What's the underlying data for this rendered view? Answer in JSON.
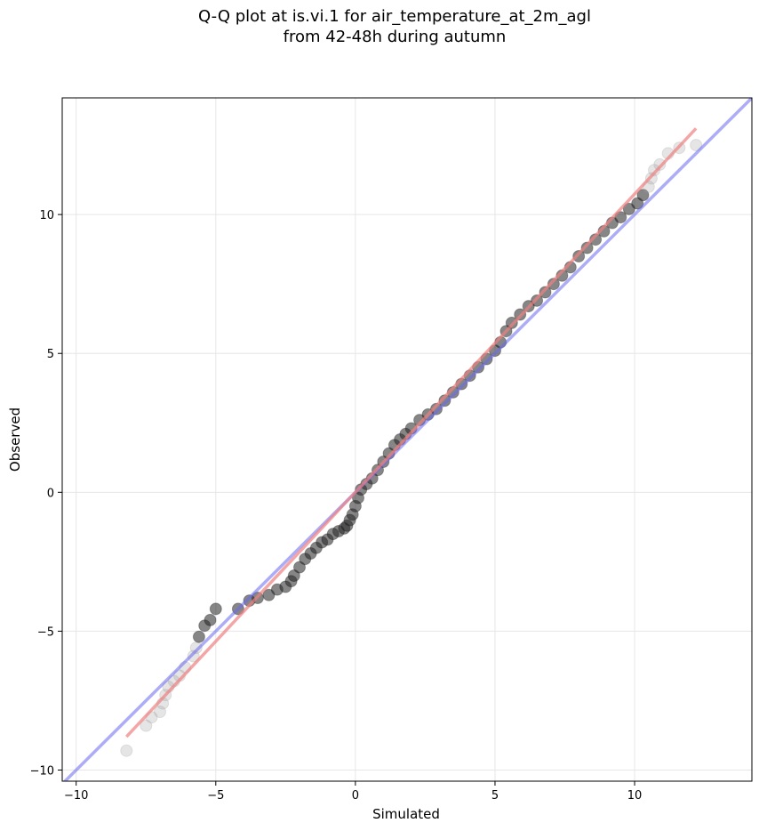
{
  "chart_data": {
    "type": "scatter",
    "title_line1": "Q-Q plot at is.vi.1 for air_temperature_at_2m_agl",
    "title_line2": "from 42-48h during autumn",
    "xlabel": "Simulated",
    "ylabel": "Observed",
    "xlim": [
      -10.5,
      14.2
    ],
    "ylim": [
      -10.4,
      14.2
    ],
    "grid": true,
    "xticks": [
      -10,
      -5,
      0,
      5,
      10
    ],
    "yticks": [
      -10,
      -5,
      0,
      5,
      10
    ],
    "xtick_labels": [
      "−10",
      "−5",
      "0",
      "5",
      "10"
    ],
    "ytick_labels": [
      "−10",
      "−5",
      "0",
      "5",
      "10"
    ],
    "reference_line": {
      "color": "#6a6af0",
      "points": [
        [
          -10.5,
          -10.5
        ],
        [
          14.2,
          14.2
        ]
      ]
    },
    "fit_line": {
      "color": "#f08080",
      "points": [
        [
          -8.2,
          -8.8
        ],
        [
          12.2,
          13.1
        ]
      ]
    },
    "quantiles": [
      [
        -8.2,
        -9.3
      ],
      [
        -7.5,
        -8.4
      ],
      [
        -7.3,
        -8.1
      ],
      [
        -7.0,
        -7.9
      ],
      [
        -6.9,
        -7.6
      ],
      [
        -6.8,
        -7.3
      ],
      [
        -6.7,
        -7.0
      ],
      [
        -6.5,
        -6.8
      ],
      [
        -6.3,
        -6.6
      ],
      [
        -6.1,
        -6.3
      ],
      [
        -5.8,
        -5.9
      ],
      [
        -5.7,
        -5.6
      ],
      [
        -5.6,
        -5.2
      ],
      [
        -5.4,
        -4.8
      ],
      [
        -5.2,
        -4.6
      ],
      [
        -5.0,
        -4.2
      ],
      [
        -4.2,
        -4.2
      ],
      [
        -3.8,
        -3.9
      ],
      [
        -3.5,
        -3.8
      ],
      [
        -3.1,
        -3.7
      ],
      [
        -2.8,
        -3.5
      ],
      [
        -2.5,
        -3.4
      ],
      [
        -2.3,
        -3.2
      ],
      [
        -2.2,
        -3.0
      ],
      [
        -2.0,
        -2.7
      ],
      [
        -1.8,
        -2.4
      ],
      [
        -1.6,
        -2.2
      ],
      [
        -1.4,
        -2.0
      ],
      [
        -1.2,
        -1.8
      ],
      [
        -1.0,
        -1.7
      ],
      [
        -0.8,
        -1.5
      ],
      [
        -0.6,
        -1.4
      ],
      [
        -0.4,
        -1.3
      ],
      [
        -0.3,
        -1.2
      ],
      [
        -0.2,
        -1.0
      ],
      [
        -0.1,
        -0.8
      ],
      [
        0.0,
        -0.5
      ],
      [
        0.1,
        -0.2
      ],
      [
        0.2,
        0.1
      ],
      [
        0.4,
        0.3
      ],
      [
        0.6,
        0.5
      ],
      [
        0.8,
        0.8
      ],
      [
        1.0,
        1.1
      ],
      [
        1.2,
        1.4
      ],
      [
        1.4,
        1.7
      ],
      [
        1.6,
        1.9
      ],
      [
        1.8,
        2.1
      ],
      [
        2.0,
        2.3
      ],
      [
        2.3,
        2.6
      ],
      [
        2.6,
        2.8
      ],
      [
        2.9,
        3.0
      ],
      [
        3.2,
        3.3
      ],
      [
        3.5,
        3.6
      ],
      [
        3.8,
        3.9
      ],
      [
        4.1,
        4.2
      ],
      [
        4.4,
        4.5
      ],
      [
        4.7,
        4.8
      ],
      [
        5.0,
        5.1
      ],
      [
        5.2,
        5.4
      ],
      [
        5.4,
        5.8
      ],
      [
        5.6,
        6.1
      ],
      [
        5.9,
        6.4
      ],
      [
        6.2,
        6.7
      ],
      [
        6.5,
        6.9
      ],
      [
        6.8,
        7.2
      ],
      [
        7.1,
        7.5
      ],
      [
        7.4,
        7.8
      ],
      [
        7.7,
        8.1
      ],
      [
        8.0,
        8.5
      ],
      [
        8.3,
        8.8
      ],
      [
        8.6,
        9.1
      ],
      [
        8.9,
        9.4
      ],
      [
        9.2,
        9.7
      ],
      [
        9.5,
        9.9
      ],
      [
        9.8,
        10.2
      ],
      [
        10.1,
        10.4
      ],
      [
        10.3,
        10.7
      ],
      [
        10.5,
        11.0
      ],
      [
        10.6,
        11.3
      ],
      [
        10.7,
        11.6
      ],
      [
        10.9,
        11.8
      ],
      [
        11.2,
        12.2
      ],
      [
        11.6,
        12.4
      ],
      [
        12.2,
        12.5
      ]
    ]
  }
}
